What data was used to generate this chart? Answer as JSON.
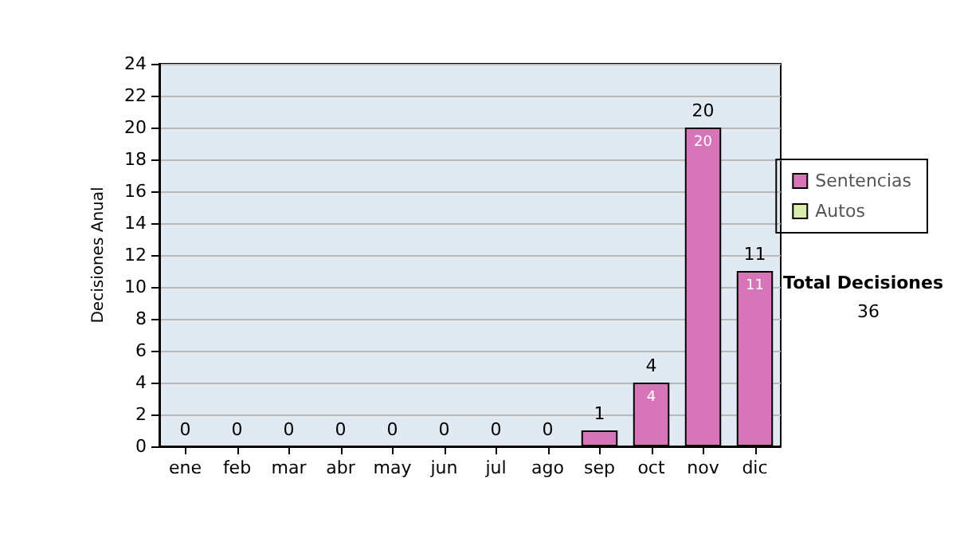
{
  "chart_data": {
    "type": "bar",
    "ylabel": "Decisiones Anual",
    "categories": [
      "ene",
      "feb",
      "mar",
      "abr",
      "may",
      "jun",
      "jul",
      "ago",
      "sep",
      "oct",
      "nov",
      "dic"
    ],
    "series": [
      {
        "name": "Sentencias",
        "color": "#d675b8",
        "values": [
          0,
          0,
          0,
          0,
          0,
          0,
          0,
          0,
          1,
          4,
          20,
          11
        ],
        "value_labels": [
          null,
          null,
          null,
          null,
          null,
          null,
          null,
          null,
          null,
          "4",
          "20",
          "11"
        ]
      },
      {
        "name": "Autos",
        "color": "#d9eeaa",
        "values": [
          0,
          0,
          0,
          0,
          0,
          0,
          0,
          0,
          0,
          0,
          0,
          0
        ]
      }
    ],
    "stacked": true,
    "totals": [
      "0",
      "0",
      "0",
      "0",
      "0",
      "0",
      "0",
      "0",
      "1",
      "4",
      "20",
      "11"
    ],
    "ylim": [
      0,
      24
    ],
    "yticks": [
      0,
      2,
      4,
      6,
      8,
      10,
      12,
      14,
      16,
      18,
      20,
      22,
      24
    ],
    "grid": "y",
    "legend": "right",
    "annotations": [
      "Total Decisiones",
      "36"
    ]
  }
}
